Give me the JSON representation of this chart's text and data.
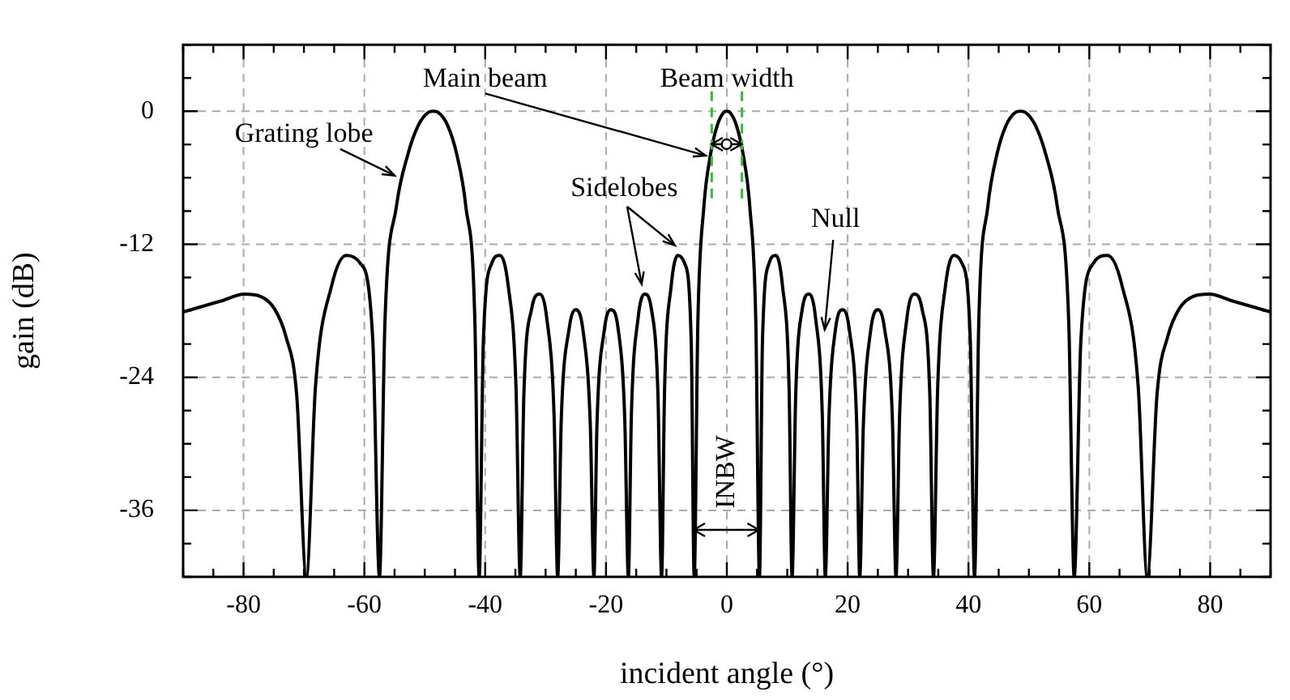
{
  "chart_data": {
    "type": "line",
    "xlabel": "incident angle (°)",
    "ylabel": "gain (dB)",
    "xlim": [
      -90,
      90
    ],
    "ylim": [
      -42,
      6
    ],
    "xticks": [
      {
        "value": -90,
        "label": null
      },
      {
        "value": -85,
        "label": null
      },
      -80,
      {
        "value": -75,
        "label": null
      },
      {
        "value": -70,
        "label": null
      },
      {
        "value": -65,
        "label": null
      },
      -60,
      {
        "value": -55,
        "label": null
      },
      {
        "value": -50,
        "label": null
      },
      {
        "value": -45,
        "label": null
      },
      -40,
      {
        "value": -35,
        "label": null
      },
      {
        "value": -30,
        "label": null
      },
      {
        "value": -25,
        "label": null
      },
      -20,
      {
        "value": -15,
        "label": null
      },
      {
        "value": -10,
        "label": null
      },
      {
        "value": -5,
        "label": null
      },
      0,
      {
        "value": 5,
        "label": null
      },
      {
        "value": 10,
        "label": null
      },
      {
        "value": 15,
        "label": null
      },
      20,
      {
        "value": 25,
        "label": null
      },
      {
        "value": 30,
        "label": null
      },
      {
        "value": 35,
        "label": null
      },
      40,
      {
        "value": 45,
        "label": null
      },
      {
        "value": 50,
        "label": null
      },
      {
        "value": 55,
        "label": null
      },
      60,
      {
        "value": 65,
        "label": null
      },
      {
        "value": 70,
        "label": null
      },
      {
        "value": 75,
        "label": null
      },
      80,
      {
        "value": 85,
        "label": null
      },
      {
        "value": 90,
        "label": null
      }
    ],
    "yticks": [
      {
        "value": -42,
        "label": null
      },
      {
        "value": -39,
        "label": null
      },
      -36,
      {
        "value": -33,
        "label": null
      },
      {
        "value": -30,
        "label": null
      },
      {
        "value": -27,
        "label": null
      },
      -24,
      {
        "value": -21,
        "label": null
      },
      {
        "value": -18,
        "label": null
      },
      {
        "value": -15,
        "label": null
      },
      -12,
      {
        "value": -9,
        "label": null
      },
      {
        "value": -6,
        "label": null
      },
      {
        "value": -3,
        "label": null
      },
      0,
      {
        "value": 3,
        "label": null
      },
      {
        "value": 6,
        "label": null
      }
    ],
    "grid": true,
    "legend": false,
    "marker": "none",
    "line_style": "solid",
    "series": [
      {
        "color": "#000000",
        "x": [
          -90,
          -83.6,
          -79.9,
          -77.2,
          -74.9,
          -73.0,
          -71.2,
          -69.6,
          -68.1,
          -65.4,
          -63.0,
          -60.7,
          -58.6,
          -57.5,
          -56.6,
          -54.7,
          -52.8,
          -51.1,
          -49.4,
          -48.6,
          -47.8,
          -46.2,
          -44.7,
          -43.2,
          -41.7,
          -41.0,
          -40.3,
          -38.9,
          -37.6,
          -36.2,
          -34.9,
          -34.2,
          -33.6,
          -32.3,
          -31.0,
          -29.8,
          -28.6,
          -28.0,
          -27.4,
          -26.1,
          -25.0,
          -23.8,
          -22.6,
          -22.0,
          -21.5,
          -20.3,
          -19.2,
          -18.0,
          -16.9,
          -16.3,
          -15.8,
          -14.7,
          -13.6,
          -12.5,
          -11.4,
          -10.8,
          -10.3,
          -9.2,
          -8.1,
          -7.0,
          -5.9,
          -5.4,
          -4.8,
          -3.8,
          -2.7,
          -1.6,
          -0.5,
          0,
          0.5,
          1.6,
          2.7,
          3.8,
          4.8,
          5.4,
          5.9,
          7.0,
          8.1,
          9.2,
          10.3,
          10.8,
          11.4,
          12.5,
          13.6,
          14.7,
          15.8,
          16.3,
          16.9,
          18.0,
          19.2,
          20.3,
          21.5,
          22.0,
          22.6,
          23.8,
          25.0,
          26.1,
          27.4,
          28.0,
          28.6,
          29.8,
          31.0,
          32.3,
          33.6,
          34.2,
          34.9,
          36.2,
          37.6,
          38.9,
          40.3,
          41.0,
          41.7,
          43.2,
          44.7,
          46.2,
          47.8,
          48.6,
          49.4,
          51.1,
          52.8,
          54.7,
          56.6,
          57.5,
          58.6,
          60.7,
          63.0,
          65.4,
          68.1,
          69.6,
          71.2,
          73.0,
          74.9,
          77.2,
          79.9,
          83.6,
          90
        ],
        "values": [
          -18.1,
          -17.1,
          -16.5,
          -16.7,
          -17.8,
          -20.3,
          -25.6,
          -42,
          -24.9,
          -15.7,
          -13.0,
          -13.7,
          -20.7,
          -42,
          -19.1,
          -8.6,
          -3.9,
          -1.3,
          -0.1,
          0,
          -0.1,
          -1.3,
          -3.9,
          -8.6,
          -19.1,
          -42,
          -20.7,
          -13.7,
          -13.0,
          -15.7,
          -24.9,
          -42,
          -25.6,
          -17.8,
          -16.5,
          -18.7,
          -27.4,
          -42,
          -27.7,
          -19.6,
          -17.9,
          -19.8,
          -28.3,
          -42,
          -28.3,
          -19.8,
          -17.9,
          -19.6,
          -27.7,
          -42,
          -27.4,
          -18.7,
          -16.5,
          -17.8,
          -25.6,
          -42,
          -24.9,
          -15.7,
          -13.0,
          -13.7,
          -20.7,
          -42,
          -19.1,
          -8.6,
          -3.9,
          -1.3,
          -0.1,
          0,
          -0.1,
          -1.3,
          -3.9,
          -8.6,
          -19.1,
          -42,
          -20.7,
          -13.7,
          -13.0,
          -15.7,
          -24.9,
          -42,
          -25.6,
          -17.8,
          -16.5,
          -18.7,
          -27.4,
          -42,
          -27.7,
          -19.6,
          -17.9,
          -19.8,
          -28.3,
          -42,
          -28.3,
          -19.8,
          -17.9,
          -19.6,
          -27.7,
          -42,
          -27.4,
          -18.7,
          -16.5,
          -17.8,
          -25.6,
          -42,
          -24.9,
          -15.7,
          -13.0,
          -13.7,
          -20.7,
          -42,
          -19.1,
          -8.6,
          -3.9,
          -1.3,
          -0.1,
          0,
          -0.1,
          -1.3,
          -3.9,
          -8.6,
          -19.1,
          -42,
          -20.7,
          -13.7,
          -13.0,
          -15.7,
          -24.9,
          -42,
          -25.6,
          -20.3,
          -17.8,
          -16.7,
          -16.5,
          -17.1,
          -18.1
        ]
      }
    ],
    "ref_lines": [
      {
        "axis": "x",
        "value": -2.5,
        "color": "#33bb33",
        "line_style": "dashed"
      },
      {
        "axis": "x",
        "value": 2.5,
        "color": "#33bb33",
        "line_style": "dashed"
      }
    ],
    "annotations": [
      {
        "text": "Main beam",
        "x": -3.5,
        "y": -4
      },
      "Beam width",
      {
        "text": "Grating lobe",
        "x": -55,
        "y": -5.8
      },
      "Sidelobes",
      {
        "text": "Null",
        "x": 16.2,
        "y": -19.7
      },
      "INBW"
    ]
  }
}
